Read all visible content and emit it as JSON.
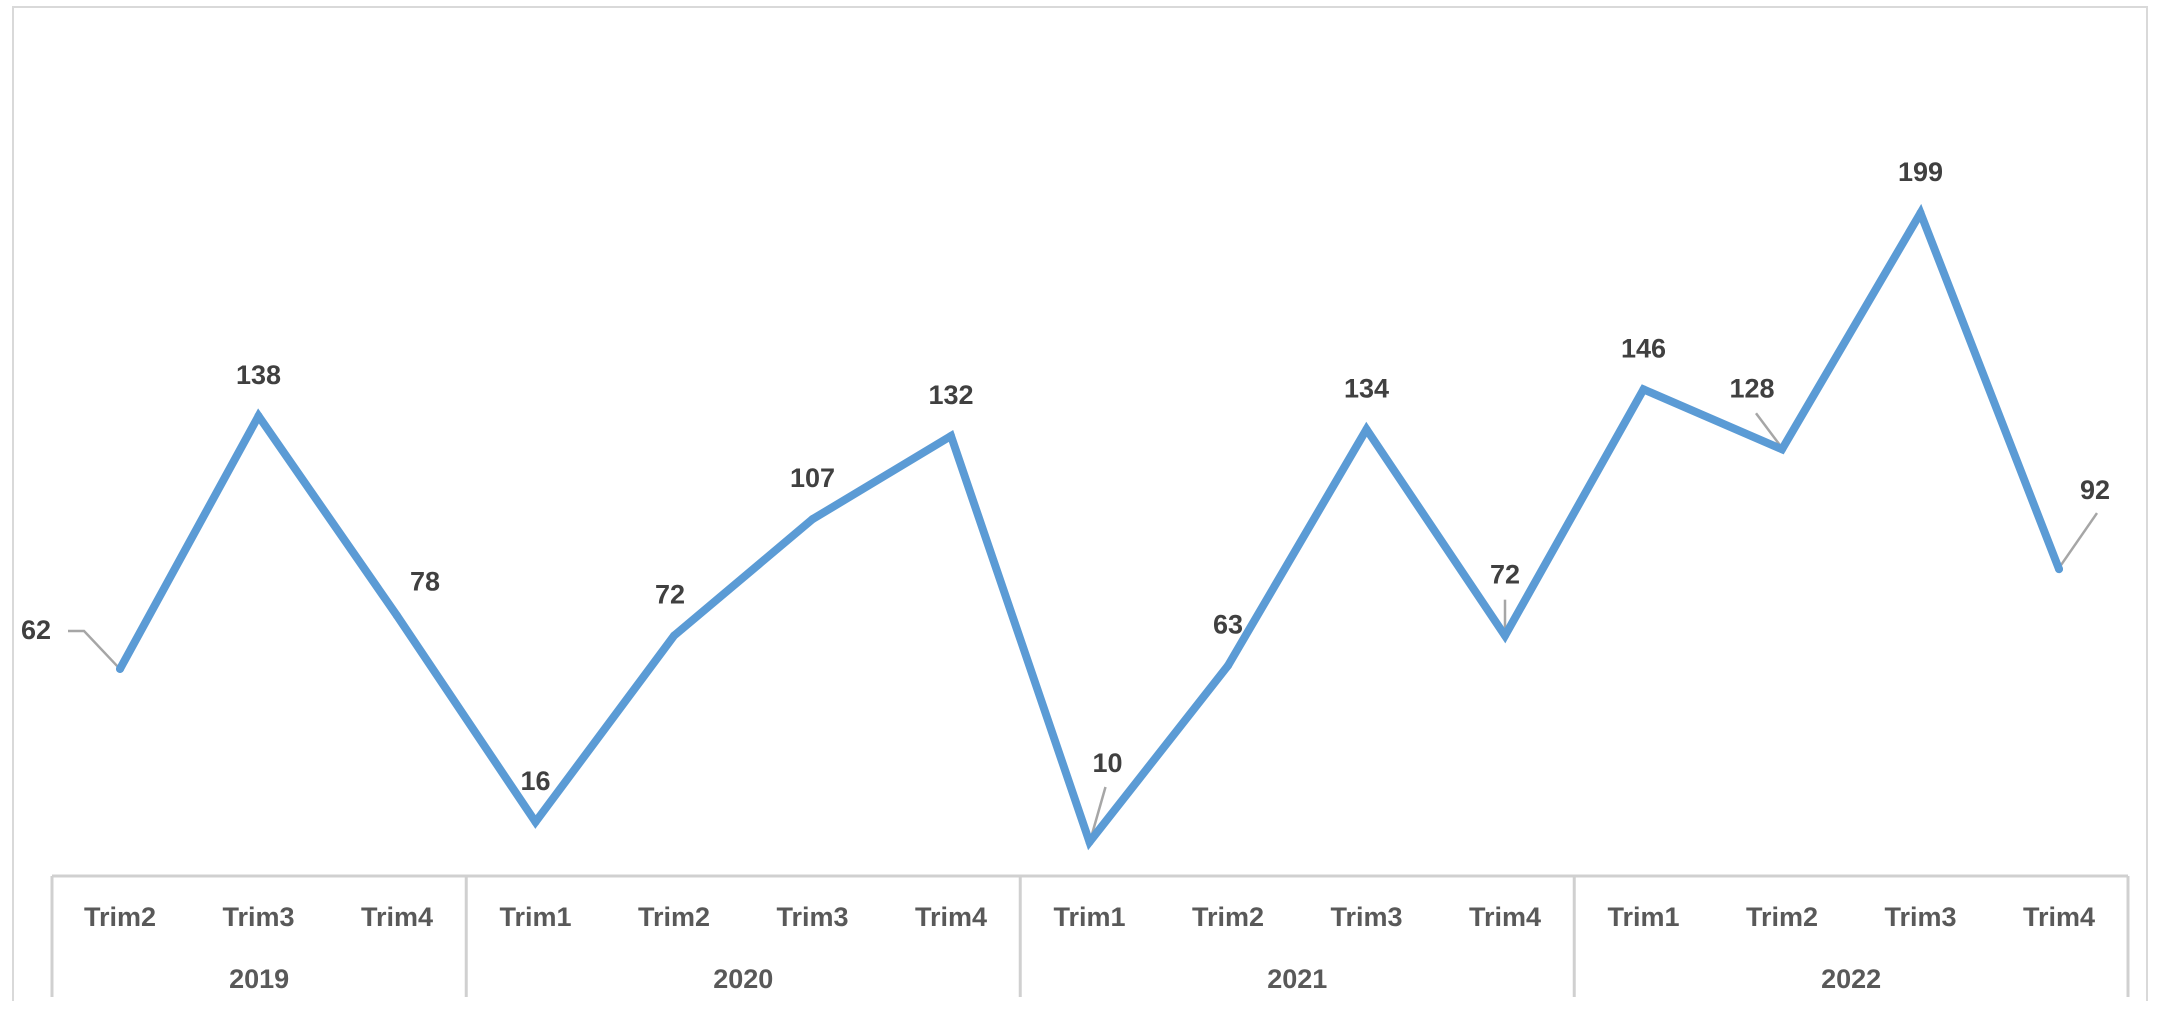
{
  "chart_data": {
    "type": "line",
    "title": "",
    "xlabel": "",
    "ylabel": "",
    "grid": false,
    "legend": "none",
    "line_color": "#5b9bd5",
    "groups": [
      {
        "label": "2019",
        "quarters": [
          "Trim2",
          "Trim3",
          "Trim4"
        ]
      },
      {
        "label": "2020",
        "quarters": [
          "Trim1",
          "Trim2",
          "Trim3",
          "Trim4"
        ]
      },
      {
        "label": "2021",
        "quarters": [
          "Trim1",
          "Trim2",
          "Trim3",
          "Trim4"
        ]
      },
      {
        "label": "2022",
        "quarters": [
          "Trim1",
          "Trim2",
          "Trim3",
          "Trim4"
        ]
      }
    ],
    "values": [
      62,
      138,
      78,
      16,
      72,
      107,
      132,
      10,
      63,
      134,
      72,
      146,
      128,
      199,
      92
    ],
    "data_labels": [
      "62",
      "138",
      "78",
      "16",
      "72",
      "107",
      "132",
      "10",
      "63",
      "134",
      "72",
      "146",
      "128",
      "199",
      "92"
    ]
  }
}
